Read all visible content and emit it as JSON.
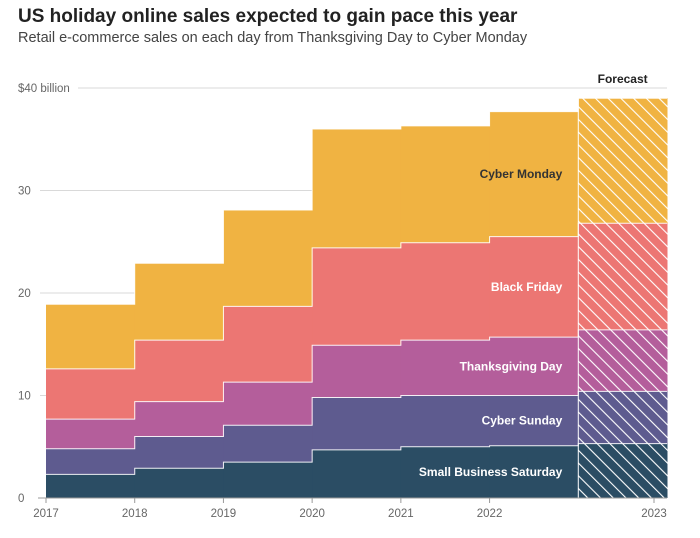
{
  "chart_data": {
    "type": "area",
    "title": "US holiday online sales expected to gain pace this year",
    "subtitle": "Retail e-commerce sales on each day from Thanksgiving Day to Cyber Monday",
    "x": [
      "2017",
      "2018",
      "2019",
      "2020",
      "2021",
      "2022",
      "2023"
    ],
    "ylim": [
      0,
      40
    ],
    "yticks": [
      {
        "value": 0,
        "label": "0"
      },
      {
        "value": 10,
        "label": "10"
      },
      {
        "value": 20,
        "label": "20"
      },
      {
        "value": 30,
        "label": "30"
      },
      {
        "value": 40,
        "label": "$40 billion"
      }
    ],
    "stacked": true,
    "step": true,
    "grid": true,
    "forecast_label": "Forecast",
    "forecast_index": 6,
    "series": [
      {
        "name": "Small Business Saturday",
        "values": [
          2.3,
          2.9,
          3.5,
          4.7,
          5.0,
          5.1,
          5.3
        ],
        "color": "#2b4d64",
        "label_color": "#ffffff"
      },
      {
        "name": "Cyber Sunday",
        "values": [
          2.5,
          3.1,
          3.6,
          5.1,
          5.0,
          4.9,
          5.1
        ],
        "color": "#5e5b8f",
        "label_color": "#ffffff"
      },
      {
        "name": "Thanksgiving Day",
        "values": [
          2.9,
          3.4,
          4.2,
          5.1,
          5.4,
          5.7,
          6.0
        ],
        "color": "#b45e9b",
        "label_color": "#ffffff"
      },
      {
        "name": "Black Friday",
        "values": [
          4.9,
          6.0,
          7.4,
          9.5,
          9.5,
          9.8,
          10.4
        ],
        "color": "#ec7673",
        "label_color": "#ffffff"
      },
      {
        "name": "Cyber Monday",
        "values": [
          6.3,
          7.5,
          9.4,
          11.6,
          11.4,
          12.2,
          12.2
        ],
        "color": "#f0b342",
        "label_color": "#333333"
      }
    ]
  }
}
